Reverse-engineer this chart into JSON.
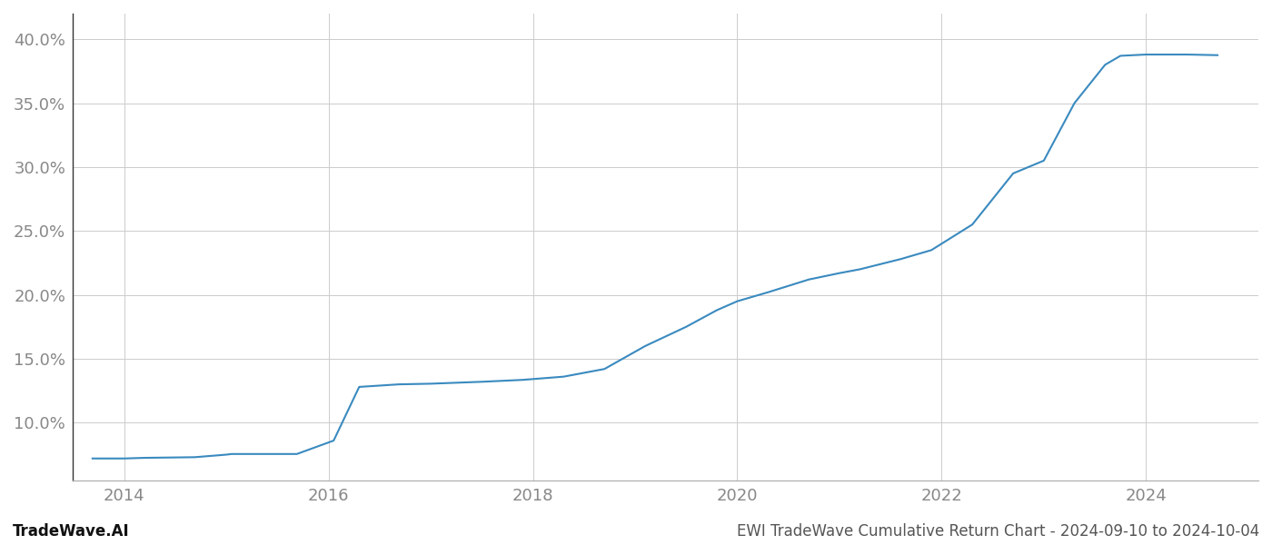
{
  "x_years": [
    2013.69,
    2014.0,
    2014.2,
    2014.69,
    2015.0,
    2015.05,
    2015.69,
    2016.05,
    2016.3,
    2016.69,
    2017.0,
    2017.5,
    2017.9,
    2018.3,
    2018.7,
    2019.1,
    2019.5,
    2019.8,
    2020.0,
    2020.3,
    2020.7,
    2021.0,
    2021.2,
    2021.6,
    2021.9,
    2022.3,
    2022.7,
    2023.0,
    2023.3,
    2023.6,
    2023.75,
    2024.0,
    2024.4,
    2024.7
  ],
  "y_values": [
    7.2,
    7.2,
    7.25,
    7.3,
    7.5,
    7.55,
    7.55,
    8.6,
    12.8,
    13.0,
    13.05,
    13.2,
    13.35,
    13.6,
    14.2,
    16.0,
    17.5,
    18.8,
    19.5,
    20.2,
    21.2,
    21.7,
    22.0,
    22.8,
    23.5,
    25.5,
    29.5,
    30.5,
    35.0,
    38.0,
    38.7,
    38.8,
    38.8,
    38.75
  ],
  "line_color": "#3a8abf",
  "line_width": 1.5,
  "xlim": [
    2013.5,
    2025.1
  ],
  "ylim": [
    5.5,
    42.0
  ],
  "xticks": [
    2014,
    2016,
    2018,
    2020,
    2022,
    2024
  ],
  "yticks": [
    10.0,
    15.0,
    20.0,
    25.0,
    30.0,
    35.0,
    40.0
  ],
  "grid_color": "#cccccc",
  "grid_alpha": 1.0,
  "background_color": "#ffffff",
  "tick_color": "#888888",
  "tick_fontsize": 13,
  "left_spine_color": "#333333",
  "bottom_spine_color": "#aaaaaa",
  "footer_left": "TradeWave.AI",
  "footer_right": "EWI TradeWave Cumulative Return Chart - 2024-09-10 to 2024-10-04",
  "footer_fontsize": 12,
  "footer_color": "#555555"
}
